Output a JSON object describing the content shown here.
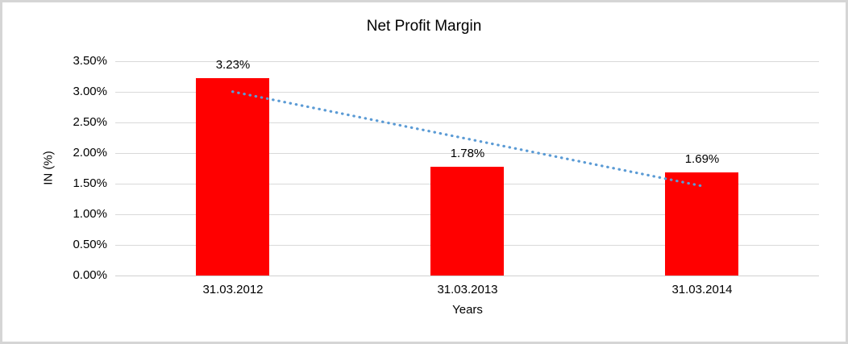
{
  "chart_data": {
    "type": "bar",
    "title": "Net Profit Margin",
    "categories": [
      "31.03.2012",
      "31.03.2013",
      "31.03.2014"
    ],
    "values": [
      3.23,
      1.78,
      1.69
    ],
    "value_labels": [
      "3.23%",
      "1.78%",
      "1.69%"
    ],
    "xlabel": "Years",
    "ylabel": "IN (%)",
    "ylim": [
      0,
      3.5
    ],
    "ytick_step": 0.5,
    "ytick_labels": [
      "0.00%",
      "0.50%",
      "1.00%",
      "1.50%",
      "2.00%",
      "2.50%",
      "3.00%",
      "3.50%"
    ],
    "bar_color": "#ff0000",
    "gridline_color": "#d9d9d9",
    "grid": true,
    "legend": "none",
    "trendline": {
      "type": "linear",
      "style": "dotted",
      "color": "#5b9bd5"
    }
  }
}
